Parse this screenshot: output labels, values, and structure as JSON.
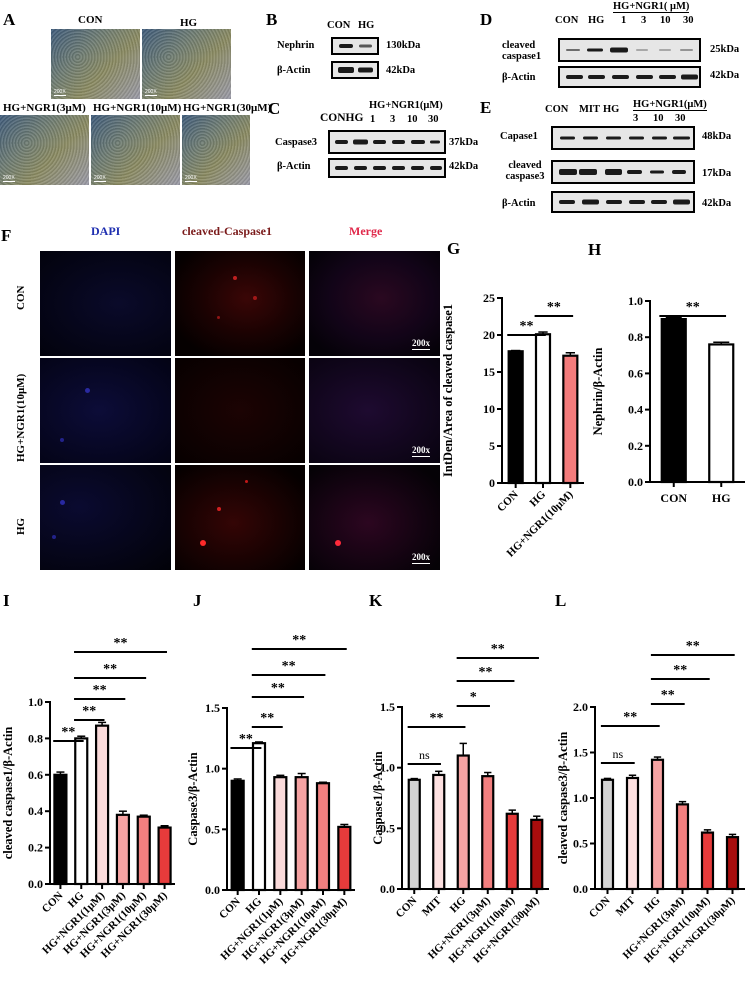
{
  "panels": {
    "A": {
      "label": "A",
      "images": [
        {
          "title": "CON",
          "scale": "200X"
        },
        {
          "title": "HG",
          "scale": "200X"
        },
        {
          "title": "HG+NGR1(3μM)",
          "scale": "200X"
        },
        {
          "title": "HG+NGR1(10μM)",
          "scale": "200X"
        },
        {
          "title": "HG+NGR1(30μM)",
          "scale": "200X"
        }
      ]
    },
    "B": {
      "label": "B",
      "lanes": [
        "CON",
        "HG"
      ],
      "rows": [
        {
          "protein": "Nephrin",
          "size": "130kDa"
        },
        {
          "protein": "β-Actin",
          "size": "42kDa"
        }
      ]
    },
    "C": {
      "label": "C",
      "group_header": "HG+NGR1(μM)",
      "lanes": [
        "CON",
        "HG",
        "1",
        "3",
        "10",
        "30"
      ],
      "lanes_text": "CONHG",
      "rows": [
        {
          "protein": "Caspase3",
          "size": "37kDa"
        },
        {
          "protein": "β-Actin",
          "size": "42kDa"
        }
      ]
    },
    "D": {
      "label": "D",
      "group_header": "HG+NGR1( μM)",
      "lanes": [
        "CON",
        "HG",
        "1",
        "3",
        "10",
        "30"
      ],
      "rows": [
        {
          "protein": "cleaved caspase1",
          "size": "25kDa"
        },
        {
          "protein": "β-Actin",
          "size": "42kDa"
        }
      ]
    },
    "E": {
      "label": "E",
      "group_header": "HG+NGR1(μM)",
      "lanes": [
        "CON",
        "MIT",
        "HG",
        "3",
        "10",
        "30"
      ],
      "rows": [
        {
          "protein": "Capase1",
          "size": "48kDa"
        },
        {
          "protein": "cleaved caspase3",
          "size": "17kDa"
        },
        {
          "protein": "β-Actin",
          "size": "42kDa"
        }
      ]
    },
    "F": {
      "label": "F",
      "columns": [
        {
          "title": "DAPI",
          "color": "#1f2fb0"
        },
        {
          "title": "cleaved-Caspase1",
          "color": "#7a1a1a"
        },
        {
          "title": "Merge",
          "color": "#e0284a"
        }
      ],
      "rows": [
        "CON",
        "HG+NGR1(10μM)",
        "HG"
      ],
      "scale": "200x"
    },
    "G": {
      "label": "G"
    },
    "H": {
      "label": "H"
    },
    "I": {
      "label": "I"
    },
    "J": {
      "label": "J"
    },
    "K": {
      "label": "K"
    },
    "L": {
      "label": "L"
    }
  },
  "chart_data": [
    {
      "panel": "G",
      "type": "bar",
      "title": "",
      "xlabel": "",
      "ylabel": "IntDen/Area of cleaved caspase1",
      "categories": [
        "CON",
        "HG",
        "HG+NGR1(10μM)"
      ],
      "values": [
        17.8,
        20.1,
        17.2
      ],
      "errors": [
        0.1,
        0.3,
        0.4
      ],
      "colors": [
        "#000000",
        "#ffffff",
        "#f47c7c"
      ],
      "ylim": [
        0,
        25
      ],
      "yticks": [
        0,
        5,
        10,
        15,
        20,
        25
      ],
      "significance": [
        {
          "from": 0,
          "to": 1,
          "label": "**"
        },
        {
          "from": 1,
          "to": 2,
          "label": "**"
        }
      ]
    },
    {
      "panel": "H",
      "type": "bar",
      "title": "",
      "xlabel": "",
      "ylabel": "Nephrin/β-Actin",
      "categories": [
        "CON",
        "HG"
      ],
      "values": [
        0.9,
        0.76
      ],
      "errors": [
        0.01,
        0.012
      ],
      "colors": [
        "#000000",
        "#ffffff"
      ],
      "ylim": [
        0,
        1.0
      ],
      "yticks": [
        0.0,
        0.2,
        0.4,
        0.6,
        0.8,
        1.0
      ],
      "significance": [
        {
          "from": 0,
          "to": 1,
          "label": "**"
        }
      ]
    },
    {
      "panel": "I",
      "type": "bar",
      "title": "",
      "xlabel": "",
      "ylabel": "cleaved caspase1/β-Actin",
      "categories": [
        "CON",
        "HG",
        "HG+NGR1(1μM)",
        "HG+NGR1(3μM)",
        "HG+NGR1(10μM)",
        "HG+NGR1(30μM)"
      ],
      "values": [
        0.6,
        0.8,
        0.87,
        0.38,
        0.37,
        0.31
      ],
      "errors": [
        0.015,
        0.012,
        0.018,
        0.02,
        0.008,
        0.01
      ],
      "colors": [
        "#000000",
        "#ffffff",
        "#fadada",
        "#f6a3a3",
        "#f27f7f",
        "#e63b3b"
      ],
      "ylim": [
        0,
        1.0
      ],
      "yticks": [
        0.0,
        0.2,
        0.4,
        0.6,
        0.8,
        1.0
      ],
      "significance": [
        {
          "from": 0,
          "to": 1,
          "label": "**"
        },
        {
          "from": 1,
          "to": 2,
          "label": "**"
        },
        {
          "from": 1,
          "to": 3,
          "label": "**"
        },
        {
          "from": 1,
          "to": 4,
          "label": "**"
        },
        {
          "from": 1,
          "to": 5,
          "label": "**"
        }
      ]
    },
    {
      "panel": "J",
      "type": "bar",
      "title": "",
      "xlabel": "",
      "ylabel": "Caspase3/β-Actin",
      "categories": [
        "CON",
        "HG",
        "HG+NGR1(1μM)",
        "HG+NGR1(3μM)",
        "HG+NGR1(10μM)",
        "HG+NGR1(30μM)"
      ],
      "values": [
        0.9,
        1.21,
        0.93,
        0.93,
        0.88,
        0.52
      ],
      "errors": [
        0.015,
        0.01,
        0.015,
        0.03,
        0.008,
        0.02
      ],
      "colors": [
        "#000000",
        "#ffffff",
        "#fadada",
        "#f6a3a3",
        "#f27f7f",
        "#e63b3b"
      ],
      "ylim": [
        0,
        1.5
      ],
      "yticks": [
        0.0,
        0.5,
        1.0,
        1.5
      ],
      "significance": [
        {
          "from": 0,
          "to": 1,
          "label": "**"
        },
        {
          "from": 1,
          "to": 2,
          "label": "**"
        },
        {
          "from": 1,
          "to": 3,
          "label": "**"
        },
        {
          "from": 1,
          "to": 4,
          "label": "**"
        },
        {
          "from": 1,
          "to": 5,
          "label": "**"
        }
      ]
    },
    {
      "panel": "K",
      "type": "bar",
      "title": "",
      "xlabel": "",
      "ylabel": "Caspase1/β-Actin",
      "categories": [
        "CON",
        "MIT",
        "HG",
        "HG+NGR1(3μM)",
        "HG+NGR1(10μM)",
        "HG+NGR1(30μM)"
      ],
      "values": [
        0.9,
        0.94,
        1.1,
        0.93,
        0.62,
        0.57
      ],
      "errors": [
        0.01,
        0.03,
        0.1,
        0.03,
        0.03,
        0.03
      ],
      "colors": [
        "#d3d3d3",
        "#fde0e0",
        "#f6a3a3",
        "#f27f7f",
        "#e63b3b",
        "#a80d0d"
      ],
      "ylim": [
        0,
        1.5
      ],
      "yticks": [
        0.0,
        0.5,
        1.0,
        1.5
      ],
      "significance": [
        {
          "from": 0,
          "to": 1,
          "label": "ns"
        },
        {
          "from": 0,
          "to": 2,
          "label": "**"
        },
        {
          "from": 2,
          "to": 3,
          "label": "*"
        },
        {
          "from": 2,
          "to": 4,
          "label": "**"
        },
        {
          "from": 2,
          "to": 5,
          "label": "**"
        }
      ]
    },
    {
      "panel": "L",
      "type": "bar",
      "title": "",
      "xlabel": "",
      "ylabel": "cleaved caspase3/β-Actin",
      "categories": [
        "CON",
        "MIT",
        "HG",
        "HG+NGR1(3μM)",
        "HG+NGR1(10μM)",
        "HG+NGR1(30μM)"
      ],
      "values": [
        1.2,
        1.22,
        1.42,
        0.93,
        0.62,
        0.57
      ],
      "errors": [
        0.015,
        0.03,
        0.03,
        0.03,
        0.03,
        0.03
      ],
      "colors": [
        "#d3d3d3",
        "#fde0e0",
        "#f6a3a3",
        "#f27f7f",
        "#e63b3b",
        "#a80d0d"
      ],
      "ylim": [
        0,
        2.0
      ],
      "yticks": [
        0.0,
        0.5,
        1.0,
        1.5,
        2.0
      ],
      "significance": [
        {
          "from": 0,
          "to": 1,
          "label": "ns"
        },
        {
          "from": 0,
          "to": 2,
          "label": "**"
        },
        {
          "from": 2,
          "to": 3,
          "label": "**"
        },
        {
          "from": 2,
          "to": 4,
          "label": "**"
        },
        {
          "from": 2,
          "to": 5,
          "label": "**"
        }
      ]
    }
  ]
}
